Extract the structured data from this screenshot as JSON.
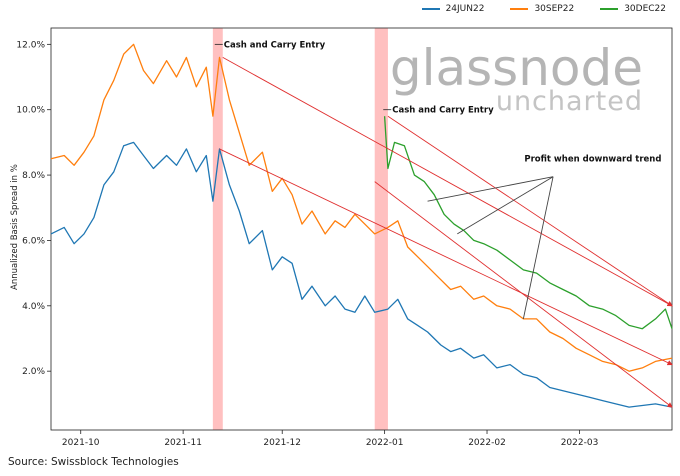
{
  "chart_data": {
    "type": "line",
    "title": "",
    "ylabel": "Annualized Basis Spread in %",
    "ylim": [
      0.2,
      12.5
    ],
    "y_ticks": [
      2.0,
      4.0,
      6.0,
      8.0,
      10.0,
      12.0
    ],
    "y_tick_labels": [
      "2.0%",
      "4.0%",
      "6.0%",
      "8.0%",
      "10.0%",
      "12.0%"
    ],
    "x_range": [
      "2021-09-22",
      "2022-03-29"
    ],
    "x_ticks": [
      "2021-10-01",
      "2021-11-01",
      "2021-12-01",
      "2022-01-01",
      "2022-02-01",
      "2022-03-01"
    ],
    "x_tick_labels": [
      "2021-10",
      "2021-11",
      "2021-12",
      "2022-01",
      "2022-02",
      "2022-03"
    ],
    "legend_position": "top-right",
    "series": [
      {
        "name": "24JUN22",
        "color": "#1f77b4",
        "points": [
          [
            "2021-09-22",
            6.2
          ],
          [
            "2021-09-26",
            6.4
          ],
          [
            "2021-09-29",
            5.9
          ],
          [
            "2021-10-02",
            6.2
          ],
          [
            "2021-10-05",
            6.7
          ],
          [
            "2021-10-08",
            7.7
          ],
          [
            "2021-10-11",
            8.1
          ],
          [
            "2021-10-14",
            8.9
          ],
          [
            "2021-10-17",
            9.0
          ],
          [
            "2021-10-20",
            8.6
          ],
          [
            "2021-10-23",
            8.2
          ],
          [
            "2021-10-27",
            8.6
          ],
          [
            "2021-10-30",
            8.3
          ],
          [
            "2021-11-02",
            8.8
          ],
          [
            "2021-11-05",
            8.1
          ],
          [
            "2021-11-08",
            8.6
          ],
          [
            "2021-11-10",
            7.2
          ],
          [
            "2021-11-12",
            8.8
          ],
          [
            "2021-11-15",
            7.7
          ],
          [
            "2021-11-18",
            6.9
          ],
          [
            "2021-11-21",
            5.9
          ],
          [
            "2021-11-25",
            6.3
          ],
          [
            "2021-11-28",
            5.1
          ],
          [
            "2021-12-01",
            5.5
          ],
          [
            "2021-12-04",
            5.3
          ],
          [
            "2021-12-07",
            4.2
          ],
          [
            "2021-12-10",
            4.6
          ],
          [
            "2021-12-14",
            4.0
          ],
          [
            "2021-12-17",
            4.3
          ],
          [
            "2021-12-20",
            3.9
          ],
          [
            "2021-12-23",
            3.8
          ],
          [
            "2021-12-26",
            4.3
          ],
          [
            "2021-12-29",
            3.8
          ],
          [
            "2022-01-02",
            3.9
          ],
          [
            "2022-01-05",
            4.2
          ],
          [
            "2022-01-08",
            3.6
          ],
          [
            "2022-01-11",
            3.4
          ],
          [
            "2022-01-14",
            3.2
          ],
          [
            "2022-01-18",
            2.8
          ],
          [
            "2022-01-21",
            2.6
          ],
          [
            "2022-01-24",
            2.7
          ],
          [
            "2022-01-28",
            2.4
          ],
          [
            "2022-01-31",
            2.5
          ],
          [
            "2022-02-04",
            2.1
          ],
          [
            "2022-02-08",
            2.2
          ],
          [
            "2022-02-12",
            1.9
          ],
          [
            "2022-02-16",
            1.8
          ],
          [
            "2022-02-20",
            1.5
          ],
          [
            "2022-02-24",
            1.4
          ],
          [
            "2022-02-28",
            1.3
          ],
          [
            "2022-03-04",
            1.2
          ],
          [
            "2022-03-08",
            1.1
          ],
          [
            "2022-03-12",
            1.0
          ],
          [
            "2022-03-16",
            0.9
          ],
          [
            "2022-03-20",
            0.95
          ],
          [
            "2022-03-24",
            1.0
          ],
          [
            "2022-03-29",
            0.9
          ]
        ]
      },
      {
        "name": "30SEP22",
        "color": "#ff7f0e",
        "points": [
          [
            "2021-09-22",
            8.5
          ],
          [
            "2021-09-26",
            8.6
          ],
          [
            "2021-09-29",
            8.3
          ],
          [
            "2021-10-02",
            8.7
          ],
          [
            "2021-10-05",
            9.2
          ],
          [
            "2021-10-08",
            10.3
          ],
          [
            "2021-10-11",
            10.9
          ],
          [
            "2021-10-14",
            11.7
          ],
          [
            "2021-10-17",
            12.0
          ],
          [
            "2021-10-20",
            11.2
          ],
          [
            "2021-10-23",
            10.8
          ],
          [
            "2021-10-27",
            11.5
          ],
          [
            "2021-10-30",
            11.0
          ],
          [
            "2021-11-02",
            11.6
          ],
          [
            "2021-11-05",
            10.7
          ],
          [
            "2021-11-08",
            11.3
          ],
          [
            "2021-11-10",
            9.8
          ],
          [
            "2021-11-12",
            11.6
          ],
          [
            "2021-11-15",
            10.3
          ],
          [
            "2021-11-18",
            9.3
          ],
          [
            "2021-11-21",
            8.3
          ],
          [
            "2021-11-25",
            8.7
          ],
          [
            "2021-11-28",
            7.5
          ],
          [
            "2021-12-01",
            7.9
          ],
          [
            "2021-12-04",
            7.4
          ],
          [
            "2021-12-07",
            6.5
          ],
          [
            "2021-12-10",
            6.9
          ],
          [
            "2021-12-14",
            6.2
          ],
          [
            "2021-12-17",
            6.6
          ],
          [
            "2021-12-20",
            6.4
          ],
          [
            "2021-12-23",
            6.8
          ],
          [
            "2021-12-26",
            6.5
          ],
          [
            "2021-12-29",
            6.2
          ],
          [
            "2022-01-02",
            6.4
          ],
          [
            "2022-01-05",
            6.6
          ],
          [
            "2022-01-08",
            5.8
          ],
          [
            "2022-01-11",
            5.5
          ],
          [
            "2022-01-14",
            5.2
          ],
          [
            "2022-01-18",
            4.8
          ],
          [
            "2022-01-21",
            4.5
          ],
          [
            "2022-01-24",
            4.6
          ],
          [
            "2022-01-28",
            4.2
          ],
          [
            "2022-01-31",
            4.3
          ],
          [
            "2022-02-04",
            4.0
          ],
          [
            "2022-02-08",
            3.9
          ],
          [
            "2022-02-12",
            3.6
          ],
          [
            "2022-02-16",
            3.6
          ],
          [
            "2022-02-20",
            3.2
          ],
          [
            "2022-02-24",
            3.0
          ],
          [
            "2022-02-28",
            2.7
          ],
          [
            "2022-03-04",
            2.5
          ],
          [
            "2022-03-08",
            2.3
          ],
          [
            "2022-03-12",
            2.2
          ],
          [
            "2022-03-16",
            2.0
          ],
          [
            "2022-03-20",
            2.1
          ],
          [
            "2022-03-24",
            2.3
          ],
          [
            "2022-03-29",
            2.4
          ]
        ]
      },
      {
        "name": "30DEC22",
        "color": "#2ca02c",
        "points": [
          [
            "2022-01-01",
            9.8
          ],
          [
            "2022-01-02",
            8.2
          ],
          [
            "2022-01-04",
            9.0
          ],
          [
            "2022-01-07",
            8.9
          ],
          [
            "2022-01-10",
            8.0
          ],
          [
            "2022-01-13",
            7.8
          ],
          [
            "2022-01-16",
            7.4
          ],
          [
            "2022-01-19",
            6.8
          ],
          [
            "2022-01-22",
            6.5
          ],
          [
            "2022-01-25",
            6.3
          ],
          [
            "2022-01-28",
            6.0
          ],
          [
            "2022-01-31",
            5.9
          ],
          [
            "2022-02-04",
            5.7
          ],
          [
            "2022-02-08",
            5.4
          ],
          [
            "2022-02-12",
            5.1
          ],
          [
            "2022-02-16",
            5.0
          ],
          [
            "2022-02-20",
            4.7
          ],
          [
            "2022-02-24",
            4.5
          ],
          [
            "2022-02-28",
            4.3
          ],
          [
            "2022-03-04",
            4.0
          ],
          [
            "2022-03-08",
            3.9
          ],
          [
            "2022-03-12",
            3.7
          ],
          [
            "2022-03-16",
            3.4
          ],
          [
            "2022-03-20",
            3.3
          ],
          [
            "2022-03-24",
            3.6
          ],
          [
            "2022-03-27",
            3.9
          ],
          [
            "2022-03-29",
            3.3
          ]
        ]
      }
    ],
    "shaded_regions": [
      {
        "from": "2021-11-10",
        "to": "2021-11-13",
        "color": "#ffc0c0"
      },
      {
        "from": "2021-12-29",
        "to": "2022-01-02",
        "color": "#ffc0c0"
      }
    ],
    "trend_arrows": [
      {
        "from": [
          "2021-11-13",
          11.6
        ],
        "to": [
          "2022-03-29",
          4.0
        ]
      },
      {
        "from": [
          "2021-11-12",
          8.8
        ],
        "to": [
          "2022-03-29",
          2.2
        ]
      },
      {
        "from": [
          "2021-12-29",
          7.8
        ],
        "to": [
          "2022-03-29",
          0.9
        ]
      },
      {
        "from": [
          "2022-01-02",
          9.8
        ],
        "to": [
          "2022-03-29",
          4.0
        ]
      }
    ],
    "annotations": [
      {
        "text": "Cash and Carry Entry",
        "at": [
          "2021-11-13",
          12.0
        ]
      },
      {
        "text": "Cash and Carry Entry",
        "at": [
          "2022-01-03",
          10.0
        ]
      },
      {
        "text": "Profit when downward trend",
        "at": [
          "2022-02-12",
          8.5
        ]
      }
    ],
    "callout_origin": [
      "2022-02-21",
      7.95
    ],
    "callout_targets": [
      [
        "2022-01-23",
        6.2
      ],
      [
        "2022-01-14",
        7.2
      ],
      [
        "2022-02-12",
        3.6
      ]
    ],
    "watermark": "glassnode uncharted"
  },
  "footer": {
    "source": "Source: Swissblock Technologies"
  }
}
